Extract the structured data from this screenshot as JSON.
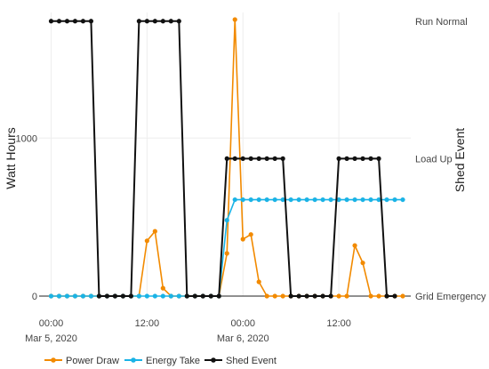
{
  "chart_data": {
    "type": "line",
    "title": "",
    "xlabel": "",
    "ylabel": "Watt Hours",
    "y2label": "Shed Event",
    "ylim": [
      0,
      1750
    ],
    "yticks": [
      0,
      1000
    ],
    "x_unit": "hours since 2020-03-05 00:00",
    "xlim": [
      -1.5,
      45
    ],
    "xticks": [
      {
        "x": 0,
        "line1": "00:00",
        "line2": "Mar 5, 2020"
      },
      {
        "x": 12,
        "line1": "12:00",
        "line2": ""
      },
      {
        "x": 24,
        "line1": "00:00",
        "line2": "Mar 6, 2020"
      },
      {
        "x": 36,
        "line1": "12:00",
        "line2": ""
      }
    ],
    "y2_categories": [
      {
        "label": "Run Normal",
        "value": 1740
      },
      {
        "label": "Load Up",
        "value": 870
      },
      {
        "label": "Grid Emergency",
        "value": 0
      }
    ],
    "grid": true,
    "legend": "bottom",
    "series": [
      {
        "name": "Power Draw",
        "color": "#f28a00",
        "axis": "y",
        "x": [
          0,
          1,
          2,
          3,
          4,
          5,
          6,
          7,
          8,
          9,
          10,
          11,
          12,
          13,
          14,
          15,
          16,
          17,
          18,
          19,
          20,
          21,
          22,
          23,
          24,
          25,
          26,
          27,
          28,
          29,
          30,
          31,
          32,
          33,
          34,
          35,
          36,
          37,
          38,
          39,
          40,
          41,
          42,
          43,
          44
        ],
        "y": [
          0,
          0,
          0,
          0,
          0,
          0,
          0,
          0,
          0,
          0,
          0,
          0,
          350,
          410,
          50,
          0,
          0,
          0,
          0,
          0,
          0,
          0,
          270,
          1750,
          360,
          390,
          90,
          0,
          0,
          0,
          0,
          0,
          0,
          0,
          0,
          0,
          0,
          0,
          320,
          210,
          0,
          0,
          0,
          0,
          0
        ]
      },
      {
        "name": "Energy Take",
        "color": "#1ab3e6",
        "axis": "y",
        "x": [
          0,
          1,
          2,
          3,
          4,
          5,
          6,
          7,
          8,
          9,
          10,
          11,
          12,
          13,
          14,
          15,
          16,
          17,
          18,
          19,
          20,
          21,
          22,
          23,
          24,
          25,
          26,
          27,
          28,
          29,
          30,
          31,
          32,
          33,
          34,
          35,
          36,
          37,
          38,
          39,
          40,
          41,
          42,
          43,
          44
        ],
        "y": [
          0,
          0,
          0,
          0,
          0,
          0,
          0,
          0,
          0,
          0,
          0,
          0,
          0,
          0,
          0,
          0,
          0,
          0,
          0,
          0,
          0,
          0,
          480,
          610,
          610,
          610,
          610,
          610,
          610,
          610,
          610,
          610,
          610,
          610,
          610,
          610,
          610,
          610,
          610,
          610,
          610,
          610,
          610,
          610,
          610
        ]
      },
      {
        "name": "Shed Event",
        "color": "#111111",
        "axis": "y2",
        "x": [
          0,
          1,
          2,
          3,
          4,
          5,
          6,
          7,
          8,
          9,
          10,
          11,
          12,
          13,
          14,
          15,
          16,
          17,
          18,
          19,
          20,
          21,
          22,
          23,
          24,
          25,
          26,
          27,
          28,
          29,
          30,
          31,
          32,
          33,
          34,
          35,
          36,
          37,
          38,
          39,
          40,
          41,
          42,
          43
        ],
        "y": [
          "Run Normal",
          "Run Normal",
          "Run Normal",
          "Run Normal",
          "Run Normal",
          "Run Normal",
          "Grid Emergency",
          "Grid Emergency",
          "Grid Emergency",
          "Grid Emergency",
          "Grid Emergency",
          "Run Normal",
          "Run Normal",
          "Run Normal",
          "Run Normal",
          "Run Normal",
          "Run Normal",
          "Grid Emergency",
          "Grid Emergency",
          "Grid Emergency",
          "Grid Emergency",
          "Grid Emergency",
          "Load Up",
          "Load Up",
          "Load Up",
          "Load Up",
          "Load Up",
          "Load Up",
          "Load Up",
          "Load Up",
          "Grid Emergency",
          "Grid Emergency",
          "Grid Emergency",
          "Grid Emergency",
          "Grid Emergency",
          "Grid Emergency",
          "Load Up",
          "Load Up",
          "Load Up",
          "Load Up",
          "Load Up",
          "Load Up",
          "Grid Emergency",
          "Grid Emergency"
        ]
      }
    ]
  }
}
